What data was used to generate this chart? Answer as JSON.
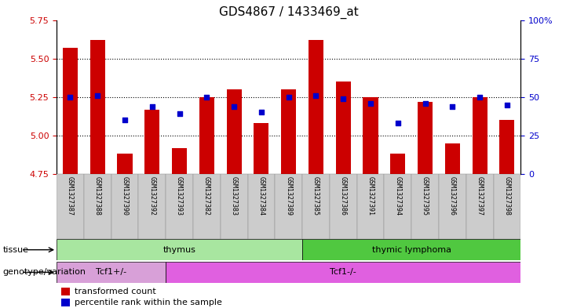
{
  "title": "GDS4867 / 1433469_at",
  "samples": [
    "GSM1327387",
    "GSM1327388",
    "GSM1327390",
    "GSM1327392",
    "GSM1327393",
    "GSM1327382",
    "GSM1327383",
    "GSM1327384",
    "GSM1327389",
    "GSM1327385",
    "GSM1327386",
    "GSM1327391",
    "GSM1327394",
    "GSM1327395",
    "GSM1327396",
    "GSM1327397",
    "GSM1327398"
  ],
  "transformed_count": [
    5.57,
    5.62,
    4.88,
    5.17,
    4.92,
    5.25,
    5.3,
    5.08,
    5.3,
    5.62,
    5.35,
    5.25,
    4.88,
    5.22,
    4.95,
    5.25,
    5.1
  ],
  "percentile_rank": [
    50,
    51,
    35,
    44,
    39,
    50,
    44,
    40,
    50,
    51,
    49,
    46,
    33,
    46,
    44,
    50,
    45
  ],
  "y_min": 4.75,
  "y_max": 5.75,
  "y_ticks": [
    4.75,
    5.0,
    5.25,
    5.5,
    5.75
  ],
  "right_y_ticks": [
    0,
    25,
    50,
    75,
    100
  ],
  "tissue_groups": [
    {
      "label": "thymus",
      "start": 0,
      "end": 9,
      "color": "#a8e6a0"
    },
    {
      "label": "thymic lymphoma",
      "start": 9,
      "end": 17,
      "color": "#50c840"
    }
  ],
  "genotype_groups": [
    {
      "label": "Tcf1+/-",
      "start": 0,
      "end": 4,
      "color": "#d8a0d8"
    },
    {
      "label": "Tcf1-/-",
      "start": 4,
      "end": 17,
      "color": "#e060e0"
    }
  ],
  "bar_color": "#CC0000",
  "dot_color": "#0000CC",
  "left_tick_color": "#CC0000",
  "right_tick_color": "#0000CC",
  "title_fontsize": 11,
  "tick_fontsize": 8,
  "sample_fontsize": 6,
  "label_fontsize": 8
}
